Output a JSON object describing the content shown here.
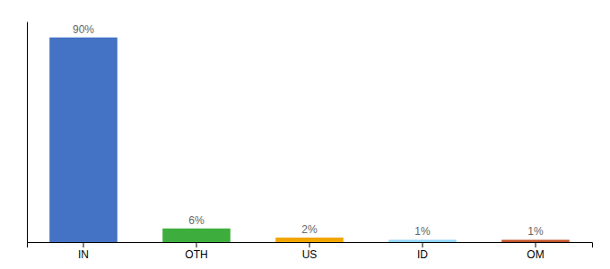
{
  "chart_data": {
    "type": "bar",
    "categories": [
      "IN",
      "OTH",
      "US",
      "ID",
      "OM"
    ],
    "values": [
      90,
      6,
      2,
      1,
      1
    ],
    "value_labels": [
      "90%",
      "6%",
      "2%",
      "1%",
      "1%"
    ],
    "colors": [
      "#4472c4",
      "#3dae3d",
      "#f0a500",
      "#8dd3f7",
      "#c0522a"
    ],
    "ylim": [
      0,
      97
    ],
    "data_labels": true,
    "tick_labels": "x"
  }
}
